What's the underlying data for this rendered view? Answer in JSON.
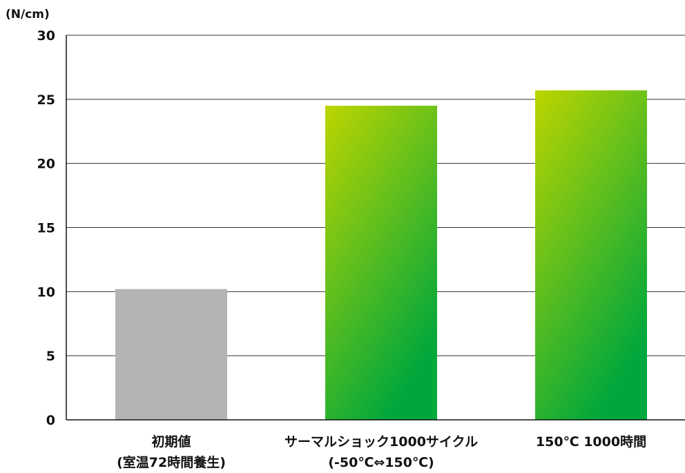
{
  "chart_data": {
    "type": "bar",
    "title": "",
    "xlabel": "",
    "ylabel": "(N/cm)",
    "ylim": [
      0,
      30
    ],
    "yticks": [
      "0",
      "5",
      "10",
      "15",
      "20",
      "25",
      "30"
    ],
    "categories": [
      {
        "line1": "初期値",
        "line2": "(室温72時間養生)"
      },
      {
        "line1": "サーマルショック1000サイクル",
        "line2": "(-50℃⇔150℃)"
      },
      {
        "line1": "150℃ 1000時間",
        "line2": ""
      }
    ],
    "values": [
      10.2,
      24.5,
      25.7
    ],
    "grid": true,
    "legend": "none",
    "colors": {
      "baseline_bar": "#b3b4b4",
      "gradient_top": "#bdd500",
      "gradient_bottom": "#00a73c",
      "grid": "#333333",
      "axis": "#111111"
    }
  }
}
